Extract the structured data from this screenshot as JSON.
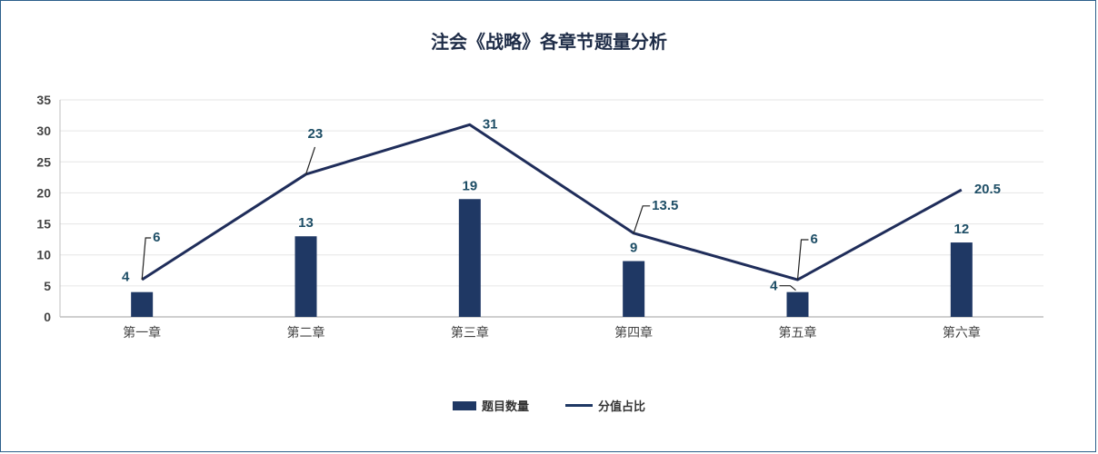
{
  "chart_data": {
    "type": "bar",
    "title": "注会《战略》各章节题量分析",
    "categories": [
      "第一章",
      "第二章",
      "第三章",
      "第四章",
      "第五章",
      "第六章"
    ],
    "series": [
      {
        "name": "题目数量",
        "type": "bar",
        "values": [
          4,
          13,
          19,
          9,
          4,
          12
        ],
        "color": "#1f3864"
      },
      {
        "name": "分值占比",
        "type": "line",
        "values": [
          6,
          23,
          31,
          13.5,
          6,
          20.5
        ],
        "color": "#1f2d5a"
      }
    ],
    "ylim": [
      0,
      35
    ],
    "yticks": [
      0,
      5,
      10,
      15,
      20,
      25,
      30,
      35
    ],
    "xlabel": "",
    "ylabel": "",
    "grid": true,
    "legend_position": "bottom"
  }
}
